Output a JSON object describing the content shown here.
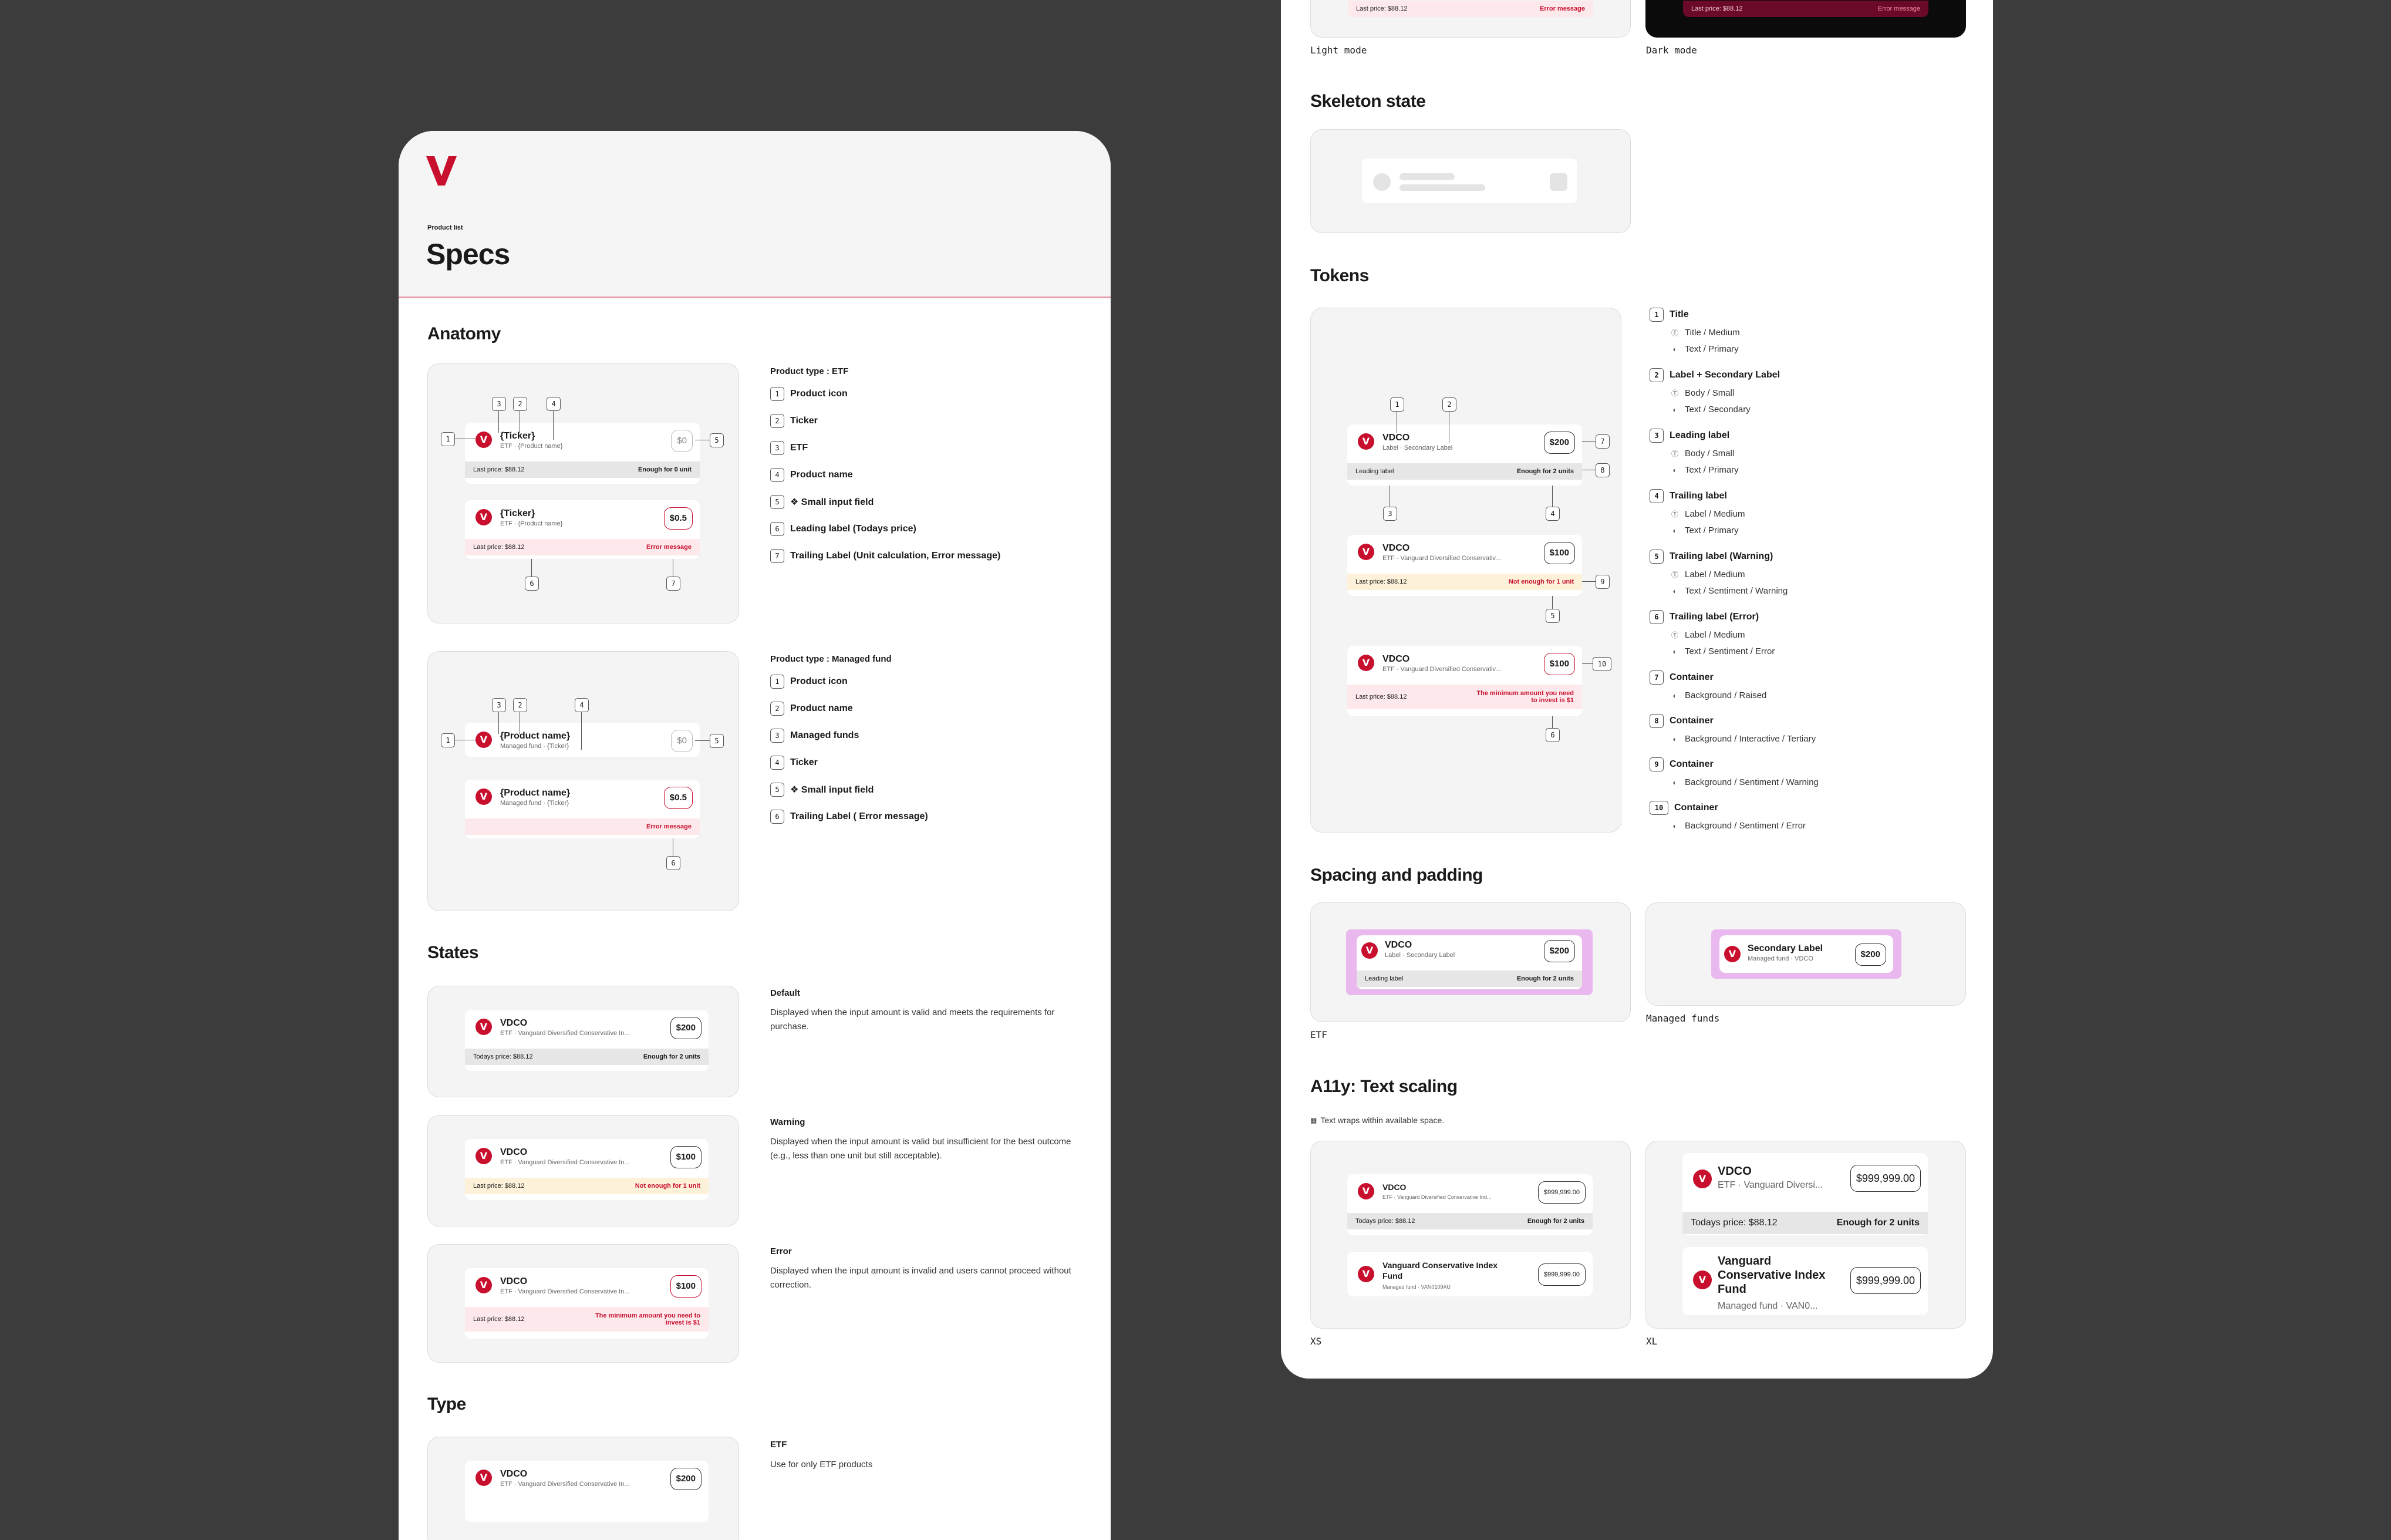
{
  "brand": {
    "accent": "#c8102e",
    "logo_letter": "V"
  },
  "header": {
    "eyebrow": "Product list",
    "title": "Specs"
  },
  "anatomy": {
    "heading": "Anatomy",
    "etf": {
      "type_title": "Product type : ETF",
      "items": [
        "Product icon",
        "Ticker",
        "ETF",
        "Product name",
        "❖ Small input field",
        "Leading label (Todays price)",
        "Trailing Label (Unit calculation, Error message)"
      ],
      "card1": {
        "title": "{Ticker}",
        "sub": "ETF · {Product name}",
        "amount": "$0",
        "left": "Last price: $88.12",
        "right": "Enough for 0 unit"
      },
      "card2": {
        "title": "{Ticker}",
        "sub": "ETF · {Product name}",
        "amount": "$0.5",
        "left": "Last price: $88.12",
        "right": "Error message"
      }
    },
    "managed": {
      "type_title": "Product type : Managed fund",
      "items": [
        "Product icon",
        "Product name",
        "Managed funds",
        "Ticker",
        "❖ Small input field",
        "Trailing Label ( Error message)"
      ],
      "card1": {
        "title": "{Product name}",
        "sub": "Managed fund · {Ticker}",
        "amount": "$0"
      },
      "card2": {
        "title": "{Product name}",
        "sub": "Managed fund · {Ticker}",
        "amount": "$0.5",
        "right": "Error message"
      }
    }
  },
  "states": {
    "heading": "States",
    "default": {
      "title": "Default",
      "desc": "Displayed when the input amount is valid and meets the requirements for purchase.",
      "card_title": "VDCO",
      "card_sub": "ETF · Vanguard Diversified Conservative In...",
      "amount": "$200",
      "left": "Todays price: $88.12",
      "right": "Enough for 2 units"
    },
    "warning": {
      "title": "Warning",
      "desc": "Displayed when the input amount is valid but insufficient for the best outcome (e.g., less than one unit but still acceptable).",
      "card_title": "VDCO",
      "card_sub": "ETF · Vanguard Diversified Conservative In...",
      "amount": "$100",
      "left": "Last price: $88.12",
      "right": "Not enough for 1 unit"
    },
    "error": {
      "title": "Error",
      "desc": "Displayed when the input amount is invalid and users cannot proceed without correction.",
      "card_title": "VDCO",
      "card_sub": "ETF · Vanguard Diversified Conservative In...",
      "amount": "$100",
      "left": "Last price: $88.12",
      "right": "The minimum amount you need to invest is $1"
    }
  },
  "type": {
    "heading": "Type",
    "etf": {
      "title": "ETF",
      "desc": "Use for only ETF products",
      "card_title": "VDCO",
      "card_sub": "ETF · Vanguard Diversified Conservative In...",
      "amount": "$200"
    }
  },
  "modes": {
    "light": {
      "caption": "Light mode",
      "left": "Last price: $88.12",
      "right": "Error message"
    },
    "dark": {
      "caption": "Dark mode",
      "left": "Last price: $88.12",
      "right": "Error message"
    }
  },
  "skeleton": {
    "heading": "Skeleton state"
  },
  "tokens": {
    "heading": "Tokens",
    "cards": {
      "c1": {
        "title": "VDCO",
        "sub": "Label · Secondary Label",
        "amount": "$200",
        "left": "Leading label",
        "right": "Enough for 2 units"
      },
      "c2": {
        "title": "VDCO",
        "sub": "ETF · Vanguard Diversified Conservativ...",
        "amount": "$100",
        "left": "Last price: $88.12",
        "right": "Not enough for 1 unit"
      },
      "c3": {
        "title": "VDCO",
        "sub": "ETF · Vanguard Diversified Conservativ...",
        "amount": "$100",
        "left": "Last price: $88.12",
        "right": "The minimum amount you need to invest is $1"
      }
    },
    "list": [
      {
        "n": "1",
        "title": "Title",
        "a": "Title / Medium",
        "b": "Text / Primary"
      },
      {
        "n": "2",
        "title": "Label + Secondary Label",
        "a": "Body / Small",
        "b": "Text / Secondary"
      },
      {
        "n": "3",
        "title": "Leading label",
        "a": "Body / Small",
        "b": "Text / Primary"
      },
      {
        "n": "4",
        "title": "Trailing label",
        "a": "Label / Medium",
        "b": "Text / Primary"
      },
      {
        "n": "5",
        "title": "Trailing label (Warning)",
        "a": "Label / Medium",
        "b": "Text / Sentiment / Warning"
      },
      {
        "n": "6",
        "title": "Trailing label (Error)",
        "a": "Label / Medium",
        "b": "Text / Sentiment / Error"
      },
      {
        "n": "7",
        "title": "Container",
        "b": "Background / Raised"
      },
      {
        "n": "8",
        "title": "Container",
        "b": "Background / Interactive / Tertiary"
      },
      {
        "n": "9",
        "title": "Container",
        "b": "Background / Sentiment / Warning"
      },
      {
        "n": "10",
        "title": "Container",
        "b": "Background / Sentiment / Error"
      }
    ]
  },
  "spacing": {
    "heading": "Spacing and padding",
    "etf": {
      "caption": "ETF",
      "title": "VDCO",
      "sub": "Label · Secondary Label",
      "amount": "$200",
      "left": "Leading label",
      "right": "Enough for 2 units"
    },
    "managed": {
      "caption": "Managed funds",
      "title": "Secondary Label",
      "sub": "Managed fund · VDCO",
      "amount": "$200"
    }
  },
  "a11y": {
    "heading": "A11y: Text scaling",
    "note": "Text wraps within available space.",
    "xs": {
      "caption": "XS",
      "c1_title": "VDCO",
      "c1_sub": "ETF · Vanguard Diversified Conservative Ind...",
      "c1_amount": "$999,999.00",
      "c1_left": "Todays price: $88.12",
      "c1_right": "Enough for 2 units",
      "c2_title": "Vanguard Conservative Index Fund",
      "c2_sub": "Managed fund · VAN0109AU",
      "c2_amount": "$999,999.00"
    },
    "xl": {
      "caption": "XL",
      "c1_title": "VDCO",
      "c1_sub": "ETF · Vanguard Diversi...",
      "c1_amount": "$999,999.00",
      "c1_left": "Todays price: $88.12",
      "c1_right": "Enough for 2 units",
      "c2_title": "Vanguard Conservative Index Fund",
      "c2_sub": "Managed fund · VAN0...",
      "c2_amount": "$999,999.00"
    }
  }
}
